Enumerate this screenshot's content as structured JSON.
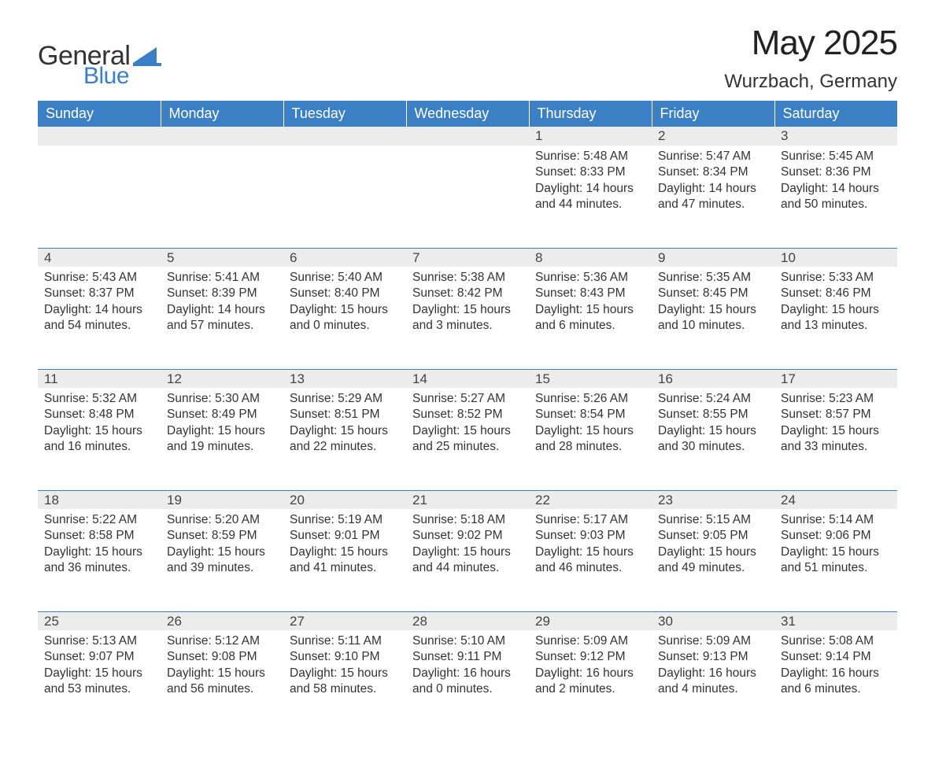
{
  "brand": {
    "word1": "General",
    "word2": "Blue",
    "color1": "#333333",
    "color2": "#3b7fc4"
  },
  "title": "May 2025",
  "location": "Wurzbach, Germany",
  "colors": {
    "header_bg": "#3b7fc4",
    "header_text": "#ffffff",
    "daynum_bg": "#ececec",
    "rule": "#3b7fc4",
    "body_text": "#333333",
    "page_bg": "#ffffff"
  },
  "day_headers": [
    "Sunday",
    "Monday",
    "Tuesday",
    "Wednesday",
    "Thursday",
    "Friday",
    "Saturday"
  ],
  "weeks": [
    [
      null,
      null,
      null,
      null,
      {
        "n": "1",
        "sunrise": "5:48 AM",
        "sunset": "8:33 PM",
        "dl": "14 hours and 44 minutes."
      },
      {
        "n": "2",
        "sunrise": "5:47 AM",
        "sunset": "8:34 PM",
        "dl": "14 hours and 47 minutes."
      },
      {
        "n": "3",
        "sunrise": "5:45 AM",
        "sunset": "8:36 PM",
        "dl": "14 hours and 50 minutes."
      }
    ],
    [
      {
        "n": "4",
        "sunrise": "5:43 AM",
        "sunset": "8:37 PM",
        "dl": "14 hours and 54 minutes."
      },
      {
        "n": "5",
        "sunrise": "5:41 AM",
        "sunset": "8:39 PM",
        "dl": "14 hours and 57 minutes."
      },
      {
        "n": "6",
        "sunrise": "5:40 AM",
        "sunset": "8:40 PM",
        "dl": "15 hours and 0 minutes."
      },
      {
        "n": "7",
        "sunrise": "5:38 AM",
        "sunset": "8:42 PM",
        "dl": "15 hours and 3 minutes."
      },
      {
        "n": "8",
        "sunrise": "5:36 AM",
        "sunset": "8:43 PM",
        "dl": "15 hours and 6 minutes."
      },
      {
        "n": "9",
        "sunrise": "5:35 AM",
        "sunset": "8:45 PM",
        "dl": "15 hours and 10 minutes."
      },
      {
        "n": "10",
        "sunrise": "5:33 AM",
        "sunset": "8:46 PM",
        "dl": "15 hours and 13 minutes."
      }
    ],
    [
      {
        "n": "11",
        "sunrise": "5:32 AM",
        "sunset": "8:48 PM",
        "dl": "15 hours and 16 minutes."
      },
      {
        "n": "12",
        "sunrise": "5:30 AM",
        "sunset": "8:49 PM",
        "dl": "15 hours and 19 minutes."
      },
      {
        "n": "13",
        "sunrise": "5:29 AM",
        "sunset": "8:51 PM",
        "dl": "15 hours and 22 minutes."
      },
      {
        "n": "14",
        "sunrise": "5:27 AM",
        "sunset": "8:52 PM",
        "dl": "15 hours and 25 minutes."
      },
      {
        "n": "15",
        "sunrise": "5:26 AM",
        "sunset": "8:54 PM",
        "dl": "15 hours and 28 minutes."
      },
      {
        "n": "16",
        "sunrise": "5:24 AM",
        "sunset": "8:55 PM",
        "dl": "15 hours and 30 minutes."
      },
      {
        "n": "17",
        "sunrise": "5:23 AM",
        "sunset": "8:57 PM",
        "dl": "15 hours and 33 minutes."
      }
    ],
    [
      {
        "n": "18",
        "sunrise": "5:22 AM",
        "sunset": "8:58 PM",
        "dl": "15 hours and 36 minutes."
      },
      {
        "n": "19",
        "sunrise": "5:20 AM",
        "sunset": "8:59 PM",
        "dl": "15 hours and 39 minutes."
      },
      {
        "n": "20",
        "sunrise": "5:19 AM",
        "sunset": "9:01 PM",
        "dl": "15 hours and 41 minutes."
      },
      {
        "n": "21",
        "sunrise": "5:18 AM",
        "sunset": "9:02 PM",
        "dl": "15 hours and 44 minutes."
      },
      {
        "n": "22",
        "sunrise": "5:17 AM",
        "sunset": "9:03 PM",
        "dl": "15 hours and 46 minutes."
      },
      {
        "n": "23",
        "sunrise": "5:15 AM",
        "sunset": "9:05 PM",
        "dl": "15 hours and 49 minutes."
      },
      {
        "n": "24",
        "sunrise": "5:14 AM",
        "sunset": "9:06 PM",
        "dl": "15 hours and 51 minutes."
      }
    ],
    [
      {
        "n": "25",
        "sunrise": "5:13 AM",
        "sunset": "9:07 PM",
        "dl": "15 hours and 53 minutes."
      },
      {
        "n": "26",
        "sunrise": "5:12 AM",
        "sunset": "9:08 PM",
        "dl": "15 hours and 56 minutes."
      },
      {
        "n": "27",
        "sunrise": "5:11 AM",
        "sunset": "9:10 PM",
        "dl": "15 hours and 58 minutes."
      },
      {
        "n": "28",
        "sunrise": "5:10 AM",
        "sunset": "9:11 PM",
        "dl": "16 hours and 0 minutes."
      },
      {
        "n": "29",
        "sunrise": "5:09 AM",
        "sunset": "9:12 PM",
        "dl": "16 hours and 2 minutes."
      },
      {
        "n": "30",
        "sunrise": "5:09 AM",
        "sunset": "9:13 PM",
        "dl": "16 hours and 4 minutes."
      },
      {
        "n": "31",
        "sunrise": "5:08 AM",
        "sunset": "9:14 PM",
        "dl": "16 hours and 6 minutes."
      }
    ]
  ],
  "labels": {
    "sunrise": "Sunrise: ",
    "sunset": "Sunset: ",
    "daylight": "Daylight: "
  }
}
